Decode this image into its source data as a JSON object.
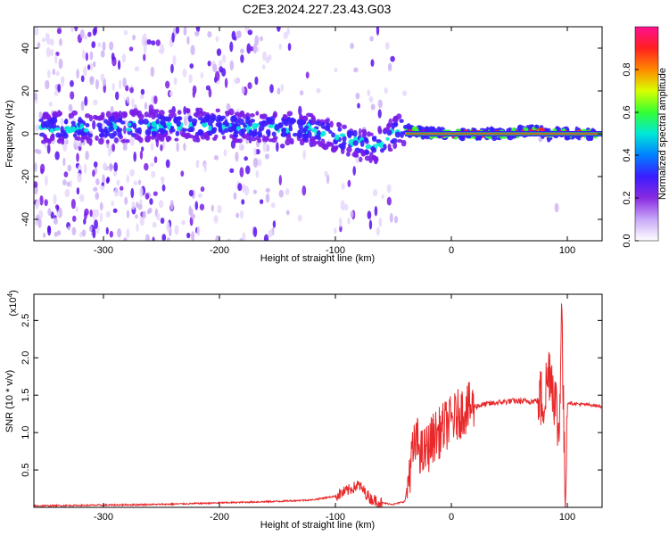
{
  "title": "C2E3.2024.227.23.43.G03",
  "chart_data": [
    {
      "type": "heatmap",
      "xlabel": "Height of straight line (km)",
      "ylabel": "Frequency (Hz)",
      "xlim": [
        -360,
        130
      ],
      "ylim": [
        -50,
        50
      ],
      "xticks": [
        -300,
        -200,
        -100,
        0,
        100
      ],
      "yticks": [
        -40,
        -20,
        0,
        20,
        40
      ],
      "ridge": {
        "x": [
          -350,
          -300,
          -250,
          -200,
          -150,
          -120,
          -100,
          -80,
          -65,
          -55,
          -45,
          -30,
          -10,
          0,
          10,
          50,
          75,
          85,
          90,
          100,
          130
        ],
        "freq": [
          3,
          3,
          4,
          4,
          3,
          2,
          -1,
          -4,
          -6,
          -2,
          2,
          1,
          0,
          0,
          0,
          0,
          2,
          -1,
          1,
          0,
          0
        ]
      },
      "colorbar": {
        "label": "Normalized spectral amplitude",
        "range": [
          0,
          1
        ],
        "ticks": [
          "0.0",
          "0.2",
          "0.4",
          "0.6",
          "0.8"
        ],
        "colors": [
          "#ffffff",
          "#c8a8f8",
          "#8a2be2",
          "#3a1dff",
          "#0080ff",
          "#00e8d8",
          "#33ff33",
          "#d8ff00",
          "#ff8800",
          "#ff2020",
          "#ff1090"
        ]
      }
    },
    {
      "type": "line",
      "xlabel": "Height of straight line (km)",
      "ylabel": "SNR (10 * v/v)",
      "scale_note": "(x10",
      "scale_exp": "4",
      "xlim": [
        -360,
        130
      ],
      "ylim": [
        0,
        2.85
      ],
      "xticks": [
        -300,
        -200,
        -100,
        0,
        100
      ],
      "yticks": [
        "0.5",
        "1.0",
        "1.5",
        "2.0",
        "2.5"
      ],
      "series": [
        {
          "color": "#e8282a",
          "x": [
            -360,
            -300,
            -250,
            -200,
            -150,
            -120,
            -100,
            -90,
            -80,
            -70,
            -60,
            -50,
            -40,
            -35,
            -30,
            -25,
            -20,
            -15,
            -10,
            -5,
            0,
            10,
            20,
            30,
            40,
            50,
            60,
            70,
            75,
            80,
            85,
            90,
            93,
            95,
            98,
            100,
            110,
            120,
            130
          ],
          "y": [
            0.02,
            0.03,
            0.04,
            0.06,
            0.08,
            0.1,
            0.15,
            0.22,
            0.3,
            0.12,
            0.06,
            0.04,
            0.08,
            0.6,
            0.9,
            0.7,
            0.8,
            0.95,
            1.0,
            1.1,
            1.15,
            1.3,
            1.35,
            1.38,
            1.4,
            1.42,
            1.42,
            1.42,
            1.43,
            1.45,
            1.9,
            1.4,
            0.9,
            2.8,
            0.1,
            1.4,
            1.38,
            1.37,
            1.35
          ]
        }
      ]
    }
  ]
}
